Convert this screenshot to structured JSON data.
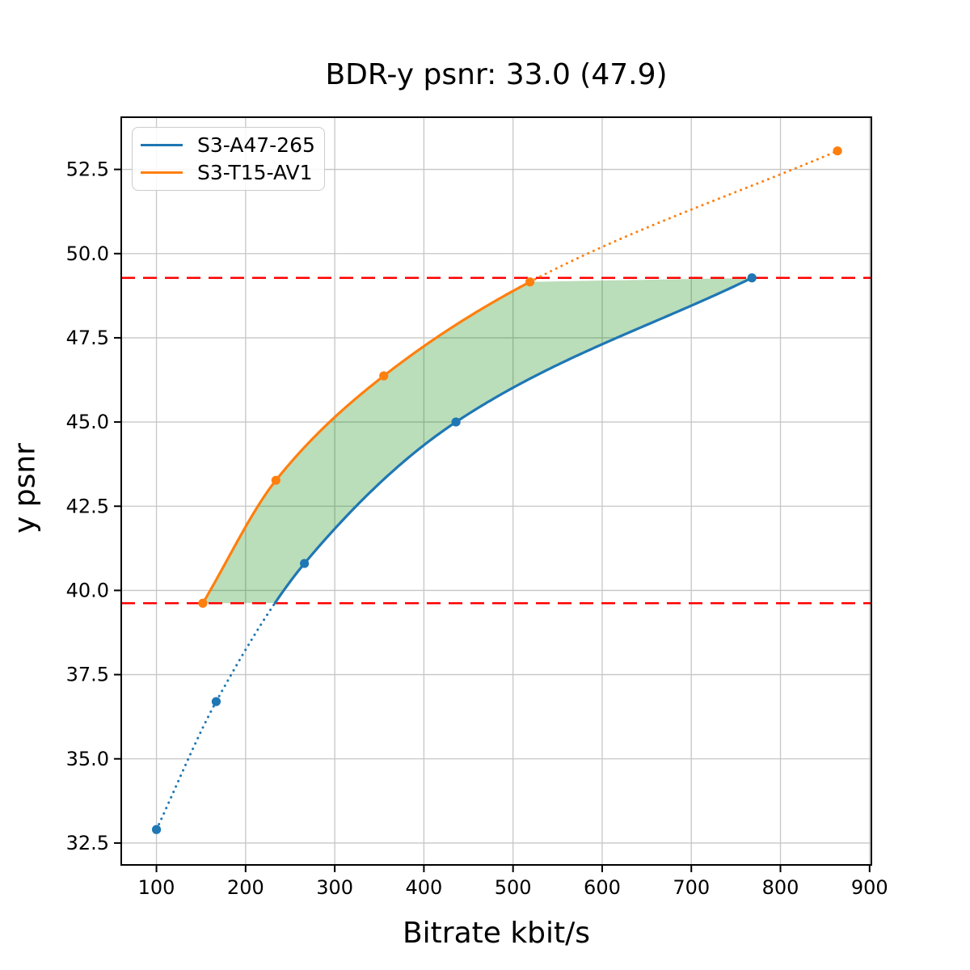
{
  "figure": {
    "title": "BDR-y psnr: 33.0 (47.9)",
    "xlabel": "Bitrate kbit/s",
    "ylabel": "y psnr"
  },
  "legend": {
    "position": "upper-left",
    "entries": [
      {
        "label": "S3-A47-265",
        "color": "#1f77b4"
      },
      {
        "label": "S3-T15-AV1",
        "color": "#ff7f0e"
      }
    ]
  },
  "chart_data": {
    "type": "line",
    "title": "BDR-y psnr: 33.0 (47.9)",
    "xlabel": "Bitrate kbit/s",
    "ylabel": "y psnr",
    "xlim": [
      60.5,
      902
    ],
    "ylim": [
      31.85,
      54.05
    ],
    "xticks": [
      100,
      200,
      300,
      400,
      500,
      600,
      700,
      800,
      900
    ],
    "xtick_labels": [
      "100",
      "200",
      "300",
      "400",
      "500",
      "600",
      "700",
      "800",
      "900"
    ],
    "yticks": [
      32.5,
      35.0,
      37.5,
      40.0,
      42.5,
      45.0,
      47.5,
      50.0,
      52.5
    ],
    "ytick_labels": [
      "32.5",
      "35.0",
      "37.5",
      "40.0",
      "42.5",
      "45.0",
      "47.5",
      "50.0",
      "52.5"
    ],
    "grid": true,
    "grid_color": "#c6c6c6",
    "legend_position": "upper-left",
    "series": [
      {
        "name": "S3-A47-265",
        "color": "#1f77b4",
        "marker": "circle",
        "points": [
          [
            100,
            32.9
          ],
          [
            167,
            36.7
          ],
          [
            266,
            40.8
          ],
          [
            436,
            45.0
          ],
          [
            768,
            49.28
          ]
        ],
        "solid_x_range": [
          233,
          768
        ],
        "style_outside_solid_range": "dotted"
      },
      {
        "name": "S3-T15-AV1",
        "color": "#ff7f0e",
        "marker": "circle",
        "points": [
          [
            152,
            39.62
          ],
          [
            234,
            43.27
          ],
          [
            355,
            46.37
          ],
          [
            519,
            49.16
          ],
          [
            864,
            53.05
          ]
        ],
        "solid_x_range": [
          152,
          519
        ],
        "style_outside_solid_range": "dotted"
      }
    ],
    "hlines": [
      {
        "y": 39.62,
        "color": "#ff0000",
        "style": "dashed"
      },
      {
        "y": 49.28,
        "color": "#ff0000",
        "style": "dashed"
      }
    ],
    "fill_between_curves": {
      "color": "#008000",
      "opacity": 0.27,
      "psnr_range": [
        39.62,
        49.28
      ]
    }
  }
}
